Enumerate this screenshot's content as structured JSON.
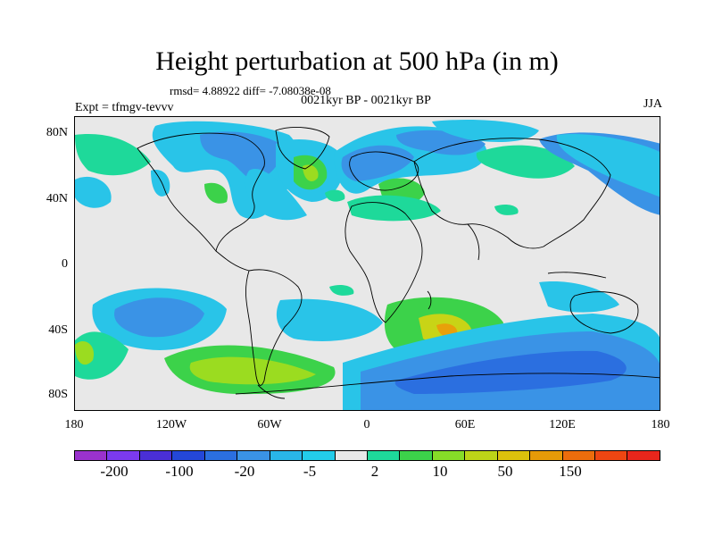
{
  "header": {
    "title": "Height perturbation at 500 hPa (in m)",
    "stats": "rmsd= 4.88922 diff= -7.08038e-08",
    "experiment": "Expt = tfmgv-tevvv",
    "period": "0021kyr BP - 0021kyr BP",
    "season": "JJA"
  },
  "axes": {
    "y_ticks": [
      "80N",
      "40N",
      "0",
      "40S",
      "80S"
    ],
    "x_ticks": [
      "180",
      "120W",
      "60W",
      "0",
      "60E",
      "120E",
      "180"
    ]
  },
  "colorbar": {
    "colors": [
      "#9a32cd",
      "#7b3aee",
      "#4a2fd6",
      "#2447d8",
      "#2b6fe0",
      "#3a93e6",
      "#29b6e8",
      "#23ccea",
      "#e8e8e8",
      "#1ed99a",
      "#3cd24a",
      "#86dc28",
      "#bcd418",
      "#dcc20c",
      "#e69a08",
      "#ec6d0c",
      "#ee4612",
      "#e8261c"
    ],
    "labels": [
      "-200",
      "-100",
      "-20",
      "-5",
      "2",
      "10",
      "50",
      "150"
    ]
  },
  "map_colors": {
    "background": "#e8e8e8",
    "light_blue": "#29c4e8",
    "blue": "#3a93e6",
    "deep_blue": "#2b6fe0",
    "teal_green": "#1ed99a",
    "green": "#3cd24a",
    "yellow_green": "#9bdc20",
    "yellow": "#c8d416",
    "orange": "#e8a00a",
    "coast": "#000000"
  }
}
